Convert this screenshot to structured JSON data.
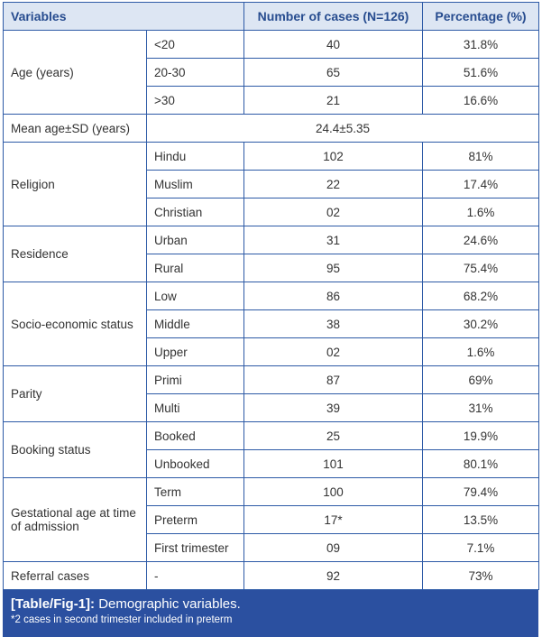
{
  "header": {
    "variables": "Variables",
    "cases": "Number of cases (N=126)",
    "percentage": "Percentage (%)"
  },
  "groups": [
    {
      "label": "Age (years)",
      "rows": [
        {
          "sub": "<20",
          "n": "40",
          "pct": "31.8%"
        },
        {
          "sub": "20-30",
          "n": "65",
          "pct": "51.6%"
        },
        {
          "sub": ">30",
          "n": "21",
          "pct": "16.6%"
        }
      ]
    },
    {
      "label": "Mean age±SD (years)",
      "merged": "24.4±5.35"
    },
    {
      "label": "Religion",
      "rows": [
        {
          "sub": "Hindu",
          "n": "102",
          "pct": "81%"
        },
        {
          "sub": "Muslim",
          "n": "22",
          "pct": "17.4%"
        },
        {
          "sub": "Christian",
          "n": "02",
          "pct": "1.6%"
        }
      ]
    },
    {
      "label": "Residence",
      "rows": [
        {
          "sub": "Urban",
          "n": "31",
          "pct": "24.6%"
        },
        {
          "sub": "Rural",
          "n": "95",
          "pct": "75.4%"
        }
      ]
    },
    {
      "label": "Socio-economic status",
      "rows": [
        {
          "sub": "Low",
          "n": "86",
          "pct": "68.2%"
        },
        {
          "sub": "Middle",
          "n": "38",
          "pct": "30.2%"
        },
        {
          "sub": "Upper",
          "n": "02",
          "pct": "1.6%"
        }
      ]
    },
    {
      "label": "Parity",
      "rows": [
        {
          "sub": "Primi",
          "n": "87",
          "pct": "69%"
        },
        {
          "sub": "Multi",
          "n": "39",
          "pct": "31%"
        }
      ]
    },
    {
      "label": "Booking status",
      "rows": [
        {
          "sub": "Booked",
          "n": "25",
          "pct": "19.9%"
        },
        {
          "sub": "Unbooked",
          "n": "101",
          "pct": "80.1%"
        }
      ]
    },
    {
      "label": "Gestational age at time of admission",
      "rows": [
        {
          "sub": "Term",
          "n": "100",
          "pct": "79.4%"
        },
        {
          "sub": "Preterm",
          "n": "17*",
          "pct": "13.5%"
        },
        {
          "sub": "First trimester",
          "n": "09",
          "pct": "7.1%"
        }
      ]
    },
    {
      "label": "Referral cases",
      "rows": [
        {
          "sub": "-",
          "n": "92",
          "pct": "73%"
        }
      ]
    }
  ],
  "caption": {
    "label": "[Table/Fig-1]:",
    "title": "Demographic variables.",
    "note": "*2 cases in second trimester included in preterm"
  }
}
